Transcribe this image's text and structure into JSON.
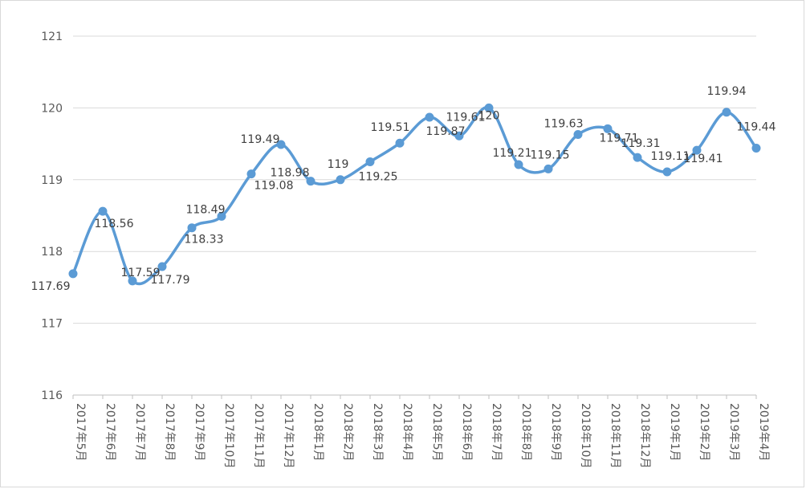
{
  "chart_data": {
    "type": "line",
    "title": "",
    "xlabel": "",
    "ylabel": "",
    "ylim": [
      116,
      121
    ],
    "yticks": [
      "116",
      "117",
      "118",
      "119",
      "120",
      "121"
    ],
    "grid": true,
    "smooth": true,
    "colors": {
      "line": "#5b9bd5",
      "grid": "#d9d9d9",
      "axis": "#bfbfbf"
    },
    "categories": [
      "2017年5月",
      "2017年6月",
      "2017年7月",
      "2017年8月",
      "2017年9月",
      "2017年10月",
      "2017年11月",
      "2017年12月",
      "2018年1月",
      "2018年2月",
      "2018年3月",
      "2018年4月",
      "2018年5月",
      "2018年6月",
      "2018年7月",
      "2018年8月",
      "2018年9月",
      "2018年10月",
      "2018年11月",
      "2018年12月",
      "2019年1月",
      "2019年2月",
      "2019年3月",
      "2019年4月"
    ],
    "values": [
      117.69,
      118.56,
      117.59,
      117.79,
      118.33,
      118.49,
      119.08,
      119.49,
      118.98,
      119,
      119.25,
      119.51,
      119.87,
      119.61,
      120,
      119.21,
      119.15,
      119.63,
      119.71,
      119.31,
      119.11,
      119.41,
      119.94,
      119.44
    ],
    "labels": [
      "117.69",
      "118.56",
      "117.59",
      "117.79",
      "118.33",
      "118.49",
      "119.08",
      "119.49",
      "118.98",
      "119",
      "119.25",
      "119.51",
      "119.87",
      "119.61",
      "120",
      "119.21",
      "119.15",
      "119.63",
      "119.71",
      "119.31",
      "119.11",
      "119.41",
      "119.94",
      "119.44"
    ]
  }
}
